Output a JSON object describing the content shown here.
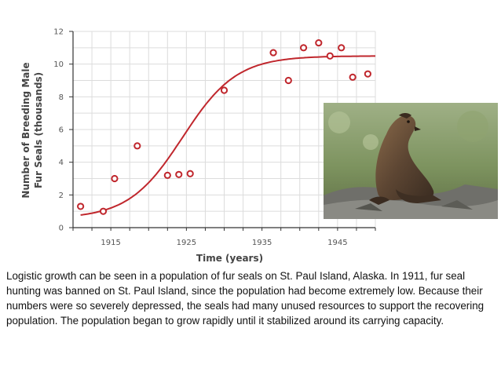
{
  "chart_data": {
    "type": "scatter",
    "title": "",
    "xlabel": "Time (years)",
    "ylabel_lines": [
      "Number of Breeding Male",
      "Fur Seals (thousands)"
    ],
    "xlim": [
      1910,
      1950
    ],
    "ylim": [
      0,
      12
    ],
    "x_ticks": [
      1915,
      1925,
      1935,
      1945
    ],
    "x_tick_labels": [
      "1915",
      "1925",
      "1935",
      "1945"
    ],
    "y_ticks": [
      0,
      2,
      4,
      6,
      8,
      10,
      12
    ],
    "y_tick_labels": [
      "0",
      "2",
      "4",
      "6",
      "8",
      "10",
      "12"
    ],
    "grid": true,
    "marker_color": "#c0272d",
    "curve_color": "#c0272d",
    "points": [
      {
        "x": 1911,
        "y": 1.3
      },
      {
        "x": 1914,
        "y": 1.0
      },
      {
        "x": 1915.5,
        "y": 3.0
      },
      {
        "x": 1918.5,
        "y": 5.0
      },
      {
        "x": 1922.5,
        "y": 3.2
      },
      {
        "x": 1924,
        "y": 3.25
      },
      {
        "x": 1925.5,
        "y": 3.3
      },
      {
        "x": 1930,
        "y": 8.4
      },
      {
        "x": 1936.5,
        "y": 10.7
      },
      {
        "x": 1938.5,
        "y": 9.0
      },
      {
        "x": 1940.5,
        "y": 11.0
      },
      {
        "x": 1942.5,
        "y": 11.3
      },
      {
        "x": 1944,
        "y": 10.5
      },
      {
        "x": 1945.5,
        "y": 11.0
      },
      {
        "x": 1947,
        "y": 9.2
      },
      {
        "x": 1949,
        "y": 9.4
      }
    ],
    "logistic_curve": {
      "K": 10.5,
      "r": 0.28,
      "x0": 1924.5,
      "baseline": 0.55,
      "x_start": 1911,
      "x_end": 1950
    }
  },
  "caption": "Logistic growth can be seen in a population of fur seals on St. Paul Island, Alaska. In 1911, fur seal hunting was banned on St. Paul Island, since the population had become extremely low. Because their numbers were so severely depressed, the seals had many unused resources to support the recovering population. The population began to grow rapidly until it stabilized around its carrying capacity."
}
